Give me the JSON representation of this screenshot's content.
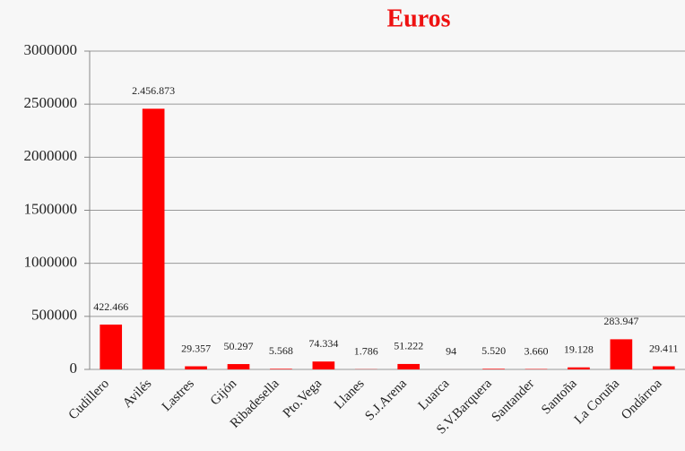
{
  "chart_data": {
    "type": "bar",
    "title": "Euros",
    "categories": [
      "Cudillero",
      "Avilés",
      "Lastres",
      "Gijón",
      "Ribadesella",
      "Pto.Vega",
      "Llanes",
      "S.J.Arena",
      "Luarca",
      "S.V.Barquera",
      "Santander",
      "Santoña",
      "La Coruña",
      "Ondárroa"
    ],
    "values": [
      422466,
      2456873,
      29357,
      50297,
      5568,
      74334,
      1786,
      51222,
      94,
      5520,
      3660,
      19128,
      283947,
      29411
    ],
    "value_labels": [
      "422.466",
      "2.456.873",
      "29.357",
      "50.297",
      "5.568",
      "74.334",
      "1.786",
      "51.222",
      "94",
      "5.520",
      "3.660",
      "19.128",
      "283.947",
      "29.411"
    ],
    "color": "#ff0000",
    "ylim": [
      0,
      3000000
    ],
    "yticks": [
      0,
      500000,
      1000000,
      1500000,
      2000000,
      2500000,
      3000000
    ],
    "grid": true
  }
}
